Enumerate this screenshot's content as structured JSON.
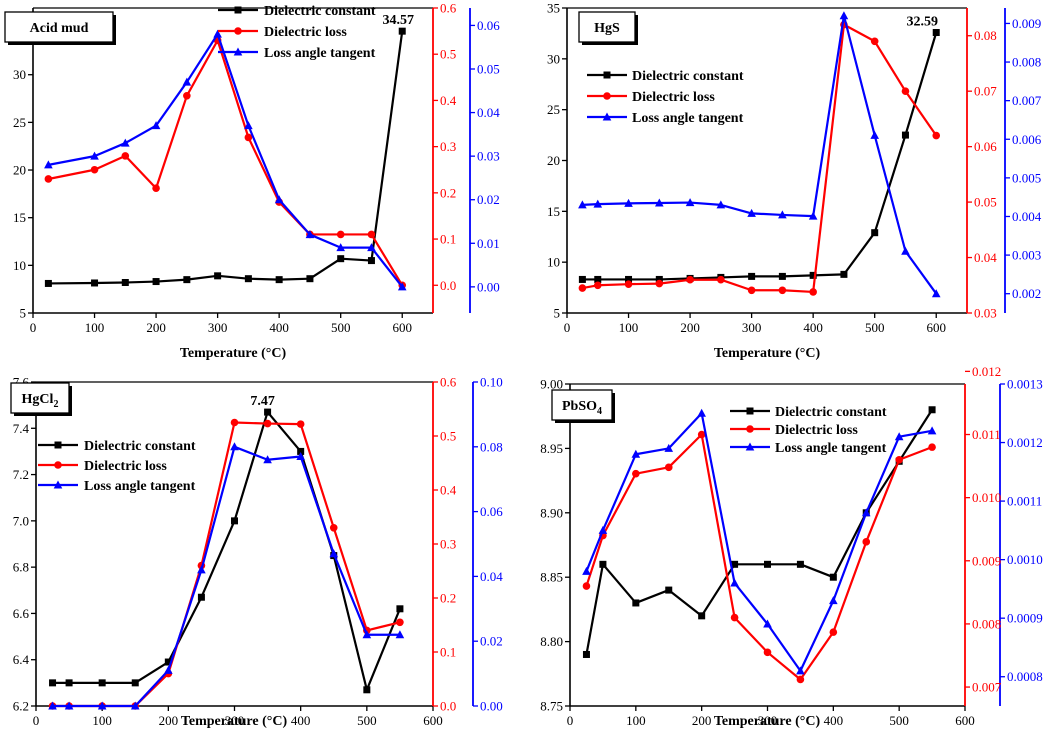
{
  "chart_data": [
    {
      "type": "line",
      "title": "Acid mud",
      "xlabel": "Temperature (°C)",
      "x": [
        25,
        100,
        150,
        200,
        250,
        300,
        350,
        400,
        450,
        500,
        550,
        600
      ],
      "xlim": [
        0,
        650
      ],
      "xticks": [
        "0",
        "100",
        "200",
        "300",
        "400",
        "500",
        "600"
      ],
      "annotation": "34.57",
      "axes": {
        "left": {
          "range": [
            5,
            37
          ],
          "ticks": [
            "5",
            "10",
            "15",
            "20",
            "25",
            "30",
            "35"
          ],
          "color": "#000000"
        },
        "right1": {
          "range": [
            -0.06,
            0.6
          ],
          "ticks": [
            "0.0",
            "0.1",
            "0.2",
            "0.3",
            "0.4",
            "0.5",
            "0.6"
          ],
          "color": "#ff0000"
        },
        "right2": {
          "range": [
            -0.006,
            0.064
          ],
          "ticks": [
            "0.00",
            "0.01",
            "0.02",
            "0.03",
            "0.04",
            "0.05",
            "0.06"
          ],
          "color": "#0000ff"
        }
      },
      "series": [
        {
          "name": "Dielectric constant",
          "axis": "left",
          "color": "#000000",
          "marker": "square",
          "values": [
            8.1,
            8.15,
            8.2,
            8.3,
            8.5,
            8.9,
            8.6,
            8.5,
            8.6,
            10.7,
            10.5,
            34.57
          ]
        },
        {
          "name": "Dielectric loss",
          "axis": "right1",
          "color": "#ff0000",
          "marker": "circle",
          "values": [
            0.23,
            0.25,
            0.28,
            0.21,
            0.41,
            0.53,
            0.32,
            0.18,
            0.11,
            0.11,
            0.11,
            0.0
          ]
        },
        {
          "name": "Loss angle tangent",
          "axis": "right2",
          "color": "#0000ff",
          "marker": "triangle",
          "values": [
            0.028,
            0.03,
            0.033,
            0.037,
            0.047,
            0.058,
            0.037,
            0.02,
            0.012,
            0.009,
            0.009,
            0.0
          ]
        }
      ]
    },
    {
      "type": "line",
      "title": "HgS",
      "xlabel": "Temperature (°C)",
      "x": [
        25,
        50,
        100,
        150,
        200,
        250,
        300,
        350,
        400,
        450,
        500,
        550,
        600
      ],
      "xlim": [
        0,
        650
      ],
      "xticks": [
        "0",
        "100",
        "200",
        "300",
        "400",
        "500",
        "600"
      ],
      "annotation": "32.59",
      "axes": {
        "left": {
          "range": [
            5,
            35
          ],
          "ticks": [
            "5",
            "10",
            "15",
            "20",
            "25",
            "30",
            "35"
          ],
          "color": "#000000"
        },
        "right1": {
          "range": [
            0.03,
            0.085
          ],
          "ticks": [
            "0.03",
            "0.04",
            "0.05",
            "0.06",
            "0.07",
            "0.08"
          ],
          "color": "#ff0000"
        },
        "right2": {
          "range": [
            0.0015,
            0.0094
          ],
          "ticks": [
            "0.002",
            "0.003",
            "0.004",
            "0.005",
            "0.006",
            "0.007",
            "0.008",
            "0.009"
          ],
          "color": "#0000ff"
        }
      },
      "series": [
        {
          "name": "Dielectric constant",
          "axis": "left",
          "color": "#000000",
          "marker": "square",
          "values": [
            8.3,
            8.3,
            8.3,
            8.3,
            8.4,
            8.5,
            8.6,
            8.6,
            8.7,
            8.8,
            12.9,
            22.5,
            32.59
          ]
        },
        {
          "name": "Dielectric loss",
          "axis": "right1",
          "color": "#ff0000",
          "marker": "circle",
          "values": [
            0.0345,
            0.035,
            0.0352,
            0.0353,
            0.036,
            0.036,
            0.0341,
            0.0341,
            0.0338,
            0.082,
            0.079,
            0.07,
            0.062
          ]
        },
        {
          "name": "Loss angle tangent",
          "axis": "right2",
          "color": "#0000ff",
          "marker": "triangle",
          "values": [
            0.0043,
            0.00432,
            0.00434,
            0.00435,
            0.00436,
            0.0043,
            0.00408,
            0.00404,
            0.00401,
            0.0092,
            0.0061,
            0.0031,
            0.002
          ]
        }
      ]
    },
    {
      "type": "line",
      "title": "HgCl",
      "title_sub": "2",
      "xlabel": "Temperature (°C)",
      "x": [
        25,
        50,
        100,
        150,
        200,
        250,
        300,
        350,
        400,
        450,
        500,
        550
      ],
      "xlim": [
        0,
        600
      ],
      "xticks": [
        "0",
        "100",
        "200",
        "300",
        "400",
        "500",
        "600"
      ],
      "annotation": "7.47",
      "axes": {
        "left": {
          "range": [
            6.2,
            7.6
          ],
          "ticks": [
            "6.2",
            "6.4",
            "6.6",
            "6.8",
            "7.0",
            "7.2",
            "7.4",
            "7.6"
          ],
          "color": "#000000"
        },
        "right1": {
          "range": [
            0.0,
            0.6
          ],
          "ticks": [
            "0.0",
            "0.1",
            "0.2",
            "0.3",
            "0.4",
            "0.5",
            "0.6"
          ],
          "color": "#ff0000"
        },
        "right2": {
          "range": [
            0.0,
            0.1
          ],
          "ticks": [
            "0.00",
            "0.02",
            "0.04",
            "0.06",
            "0.08",
            "0.10"
          ],
          "color": "#0000ff"
        }
      },
      "series": [
        {
          "name": "Dielectric constant",
          "axis": "left",
          "color": "#000000",
          "marker": "square",
          "values": [
            6.3,
            6.3,
            6.3,
            6.3,
            6.39,
            6.67,
            7.0,
            7.47,
            7.3,
            6.85,
            6.27,
            6.62
          ]
        },
        {
          "name": "Dielectric loss",
          "axis": "right1",
          "color": "#ff0000",
          "marker": "circle",
          "values": [
            0.0,
            0.0,
            0.0,
            0.0,
            0.06,
            0.26,
            0.525,
            0.523,
            0.522,
            0.33,
            0.14,
            0.155
          ]
        },
        {
          "name": "Loss angle tangent",
          "axis": "right2",
          "color": "#0000ff",
          "marker": "triangle",
          "values": [
            0.0,
            0.0,
            0.0,
            0.0,
            0.011,
            0.042,
            0.08,
            0.076,
            0.077,
            0.047,
            0.022,
            0.022
          ]
        }
      ]
    },
    {
      "type": "line",
      "title": "PbSO",
      "title_sub": "4",
      "xlabel": "Temperature (°C)",
      "x": [
        25,
        50,
        100,
        150,
        200,
        250,
        300,
        350,
        400,
        450,
        500,
        550
      ],
      "xlim": [
        0,
        600
      ],
      "xticks": [
        "0",
        "100",
        "200",
        "300",
        "400",
        "500",
        "600"
      ],
      "axes": {
        "left": {
          "range": [
            8.75,
            9.0
          ],
          "ticks": [
            "8.75",
            "8.80",
            "8.85",
            "8.90",
            "8.95",
            "9.00"
          ],
          "color": "#000000"
        },
        "right1": {
          "range": [
            0.0067,
            0.0118
          ],
          "ticks": [
            "0.007",
            "0.008",
            "0.009",
            "0.010",
            "0.011",
            "0.012"
          ],
          "color": "#ff0000"
        },
        "right2": {
          "range": [
            0.00075,
            0.0013
          ],
          "ticks": [
            "0.0008",
            "0.0009",
            "0.0010",
            "0.0011",
            "0.0012",
            "0.0013"
          ],
          "color": "#0000ff"
        }
      },
      "series": [
        {
          "name": "Dielectric constant",
          "axis": "left",
          "color": "#000000",
          "marker": "square",
          "values": [
            8.79,
            8.86,
            8.83,
            8.84,
            8.82,
            8.86,
            8.86,
            8.86,
            8.85,
            8.9,
            8.94,
            8.98
          ]
        },
        {
          "name": "Dielectric loss",
          "axis": "right1",
          "color": "#ff0000",
          "marker": "circle",
          "values": [
            0.0086,
            0.0094,
            0.01038,
            0.01048,
            0.011,
            0.0081,
            0.00755,
            0.00712,
            0.00787,
            0.0093,
            0.0106,
            0.0108
          ]
        },
        {
          "name": "Loss angle tangent",
          "axis": "right2",
          "color": "#0000ff",
          "marker": "triangle",
          "values": [
            0.00098,
            0.00105,
            0.00118,
            0.00119,
            0.00125,
            0.00096,
            0.00089,
            0.00081,
            0.00093,
            0.00108,
            0.00121,
            0.00122
          ]
        }
      ]
    }
  ]
}
